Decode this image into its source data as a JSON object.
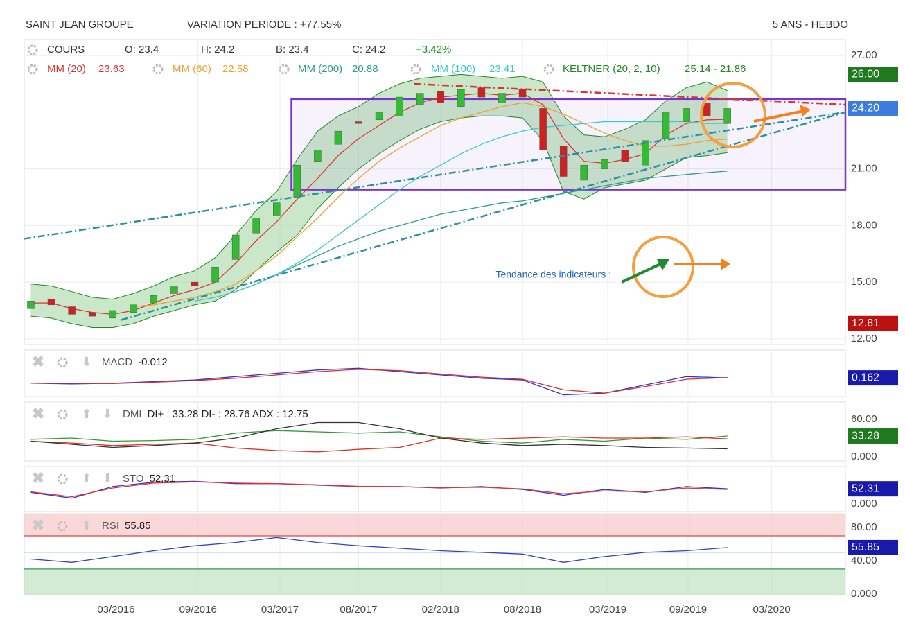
{
  "header": {
    "title": "SAINT JEAN GROUPE",
    "variation": "VARIATION PERIODE : +77.55%",
    "period": "5 ANS - HEBDO"
  },
  "annotation": "Tendance des indicateurs :",
  "chart_data": [
    {
      "type": "candlestick",
      "ohlc_header": [
        "COURS",
        "O: 23.4",
        "H: 24.2",
        "B: 23.4",
        "C: 24.2",
        "+3.42%"
      ],
      "xlim": [
        2015.61,
        2020.62
      ],
      "xticks": [
        {
          "value": 2016.17,
          "label": "03/2016"
        },
        {
          "value": 2016.67,
          "label": "09/2016"
        },
        {
          "value": 2017.17,
          "label": "03/2017"
        },
        {
          "value": 2017.65,
          "label": "08/2017"
        },
        {
          "value": 2018.15,
          "label": "02/2018"
        },
        {
          "value": 2018.65,
          "label": "08/2018"
        },
        {
          "value": 2019.17,
          "label": "03/2019"
        },
        {
          "value": 2019.66,
          "label": "09/2019"
        },
        {
          "value": 2020.17,
          "label": "03/2020"
        }
      ],
      "ylim": [
        11.7,
        27.85
      ],
      "yticks": [
        {
          "value": 12,
          "label": "12.00"
        },
        {
          "value": 15,
          "label": "15.00"
        },
        {
          "value": 18,
          "label": "18.00"
        },
        {
          "value": 21,
          "label": "21.00"
        },
        {
          "value": 27,
          "label": "27.00"
        }
      ],
      "grid": true,
      "x": [
        2015.65,
        2015.775,
        2015.9,
        2016.025,
        2016.15,
        2016.275,
        2016.4,
        2016.525,
        2016.65,
        2016.775,
        2016.9,
        2017.025,
        2017.15,
        2017.275,
        2017.4,
        2017.525,
        2017.65,
        2017.775,
        2017.9,
        2018.025,
        2018.15,
        2018.275,
        2018.4,
        2018.525,
        2018.65,
        2018.775,
        2018.9,
        2019.025,
        2019.15,
        2019.275,
        2019.4,
        2019.525,
        2019.65,
        2019.775,
        2019.9
      ],
      "open": [
        13.6,
        14.1,
        13.7,
        13.4,
        13.1,
        13.4,
        13.9,
        14.4,
        15.0,
        15.0,
        16.2,
        17.6,
        18.5,
        19.5,
        21.4,
        22.3,
        23.5,
        23.6,
        23.8,
        24.4,
        25.1,
        24.3,
        25.3,
        24.5,
        25.2,
        24.2,
        22.2,
        20.4,
        21.0,
        22.0,
        21.2,
        22.6,
        23.5,
        24.5,
        23.4
      ],
      "close": [
        14.0,
        13.8,
        13.3,
        13.2,
        13.5,
        13.8,
        14.3,
        14.8,
        14.8,
        15.8,
        17.5,
        18.4,
        19.2,
        21.2,
        22.0,
        23.0,
        23.4,
        24.0,
        24.8,
        25.0,
        24.5,
        25.2,
        24.8,
        25.0,
        24.8,
        22.0,
        20.6,
        21.2,
        21.5,
        21.4,
        22.5,
        24.0,
        24.2,
        23.8,
        24.2
      ],
      "up_color": "#33bb33",
      "down_color": "#cc2222",
      "series": [
        {
          "name": "MM (20)",
          "value_label": "23.63",
          "color": "#dd3333",
          "values": [
            13.9,
            13.9,
            13.6,
            13.4,
            13.3,
            13.5,
            13.9,
            14.3,
            14.6,
            15.0,
            16.0,
            17.2,
            18.2,
            19.4,
            20.5,
            21.7,
            22.6,
            23.3,
            24.0,
            24.5,
            24.8,
            24.9,
            25.0,
            24.9,
            25.0,
            24.4,
            22.6,
            21.4,
            21.3,
            21.5,
            21.8,
            22.8,
            23.4,
            23.6,
            23.63
          ]
        },
        {
          "name": "MM (60)",
          "value_label": "22.58",
          "color": "#f0a030",
          "values": [
            null,
            null,
            null,
            null,
            null,
            13.7,
            13.8,
            14.0,
            14.2,
            14.5,
            14.9,
            15.6,
            16.4,
            17.4,
            18.4,
            19.5,
            20.5,
            21.4,
            22.1,
            22.7,
            23.3,
            23.7,
            24.0,
            24.3,
            24.5,
            24.3,
            23.9,
            23.4,
            22.9,
            22.5,
            22.2,
            22.2,
            22.3,
            22.5,
            22.58
          ]
        },
        {
          "name": "MM (200)",
          "value_label": "20.88",
          "color": "#2a9d8f",
          "values": [
            null,
            null,
            null,
            null,
            null,
            null,
            null,
            null,
            null,
            null,
            14.5,
            14.9,
            15.4,
            15.9,
            16.4,
            16.9,
            17.3,
            17.7,
            18.0,
            18.3,
            18.6,
            18.8,
            19.0,
            19.2,
            19.3,
            19.5,
            19.7,
            19.9,
            20.1,
            20.3,
            20.5,
            20.6,
            20.7,
            20.8,
            20.88
          ]
        },
        {
          "name": "MM (100)",
          "value_label": "23.41",
          "color": "#33cccc",
          "values": [
            null,
            null,
            null,
            null,
            null,
            null,
            null,
            null,
            14.0,
            14.2,
            14.5,
            14.9,
            15.4,
            16.0,
            16.7,
            17.5,
            18.3,
            19.1,
            19.9,
            20.6,
            21.2,
            21.8,
            22.3,
            22.7,
            23.0,
            23.2,
            23.3,
            23.4,
            23.5,
            23.5,
            23.5,
            23.5,
            23.5,
            23.4,
            23.41
          ]
        }
      ],
      "keltner": {
        "name": "KELTNER (20, 2, 10)",
        "value_label": "25.14 - 21.86",
        "color": "#228822",
        "fill": "#9fd49f",
        "upper": [
          14.9,
          14.8,
          14.5,
          14.2,
          14.1,
          14.4,
          14.8,
          15.3,
          15.6,
          16.3,
          17.5,
          18.8,
          19.8,
          21.5,
          23.0,
          23.8,
          24.3,
          25.0,
          25.5,
          25.8,
          25.9,
          26.0,
          25.9,
          25.8,
          25.9,
          25.6,
          23.8,
          22.8,
          22.7,
          23.1,
          23.6,
          24.6,
          25.3,
          25.6,
          25.14
        ],
        "lower": [
          13.2,
          13.1,
          12.8,
          12.6,
          12.6,
          12.8,
          13.2,
          13.5,
          13.8,
          14.0,
          14.6,
          15.6,
          16.6,
          17.5,
          18.9,
          20.0,
          21.0,
          21.8,
          22.5,
          23.1,
          23.5,
          23.7,
          23.8,
          23.8,
          23.7,
          22.5,
          19.8,
          19.4,
          20.0,
          20.2,
          20.4,
          21.0,
          21.6,
          21.7,
          21.86
        ]
      },
      "trend_lines": [
        {
          "x": [
            2015.61,
            2020.62
          ],
          "y": [
            17.3,
            24.0
          ],
          "color": "#2a8fa0"
        },
        {
          "x": [
            2016.2,
            2020.62
          ],
          "y": [
            13.0,
            24.0
          ],
          "color": "#2a8fa0"
        },
        {
          "x": [
            2017.99,
            2020.62
          ],
          "y": [
            25.5,
            24.4
          ],
          "color": "#dd3333"
        }
      ],
      "box": {
        "x": [
          2017.24,
          2020.62
        ],
        "y": [
          19.9,
          24.7
        ],
        "color": "#7a33cc"
      },
      "badges": [
        {
          "value": 26.0,
          "label": "26.00",
          "color": "#1f7a1f"
        },
        {
          "value": 24.2,
          "label": "24.20",
          "color": "#3b7ddd"
        },
        {
          "value": 12.81,
          "label": "12.81",
          "color": "#bb1111"
        }
      ]
    },
    {
      "type": "line",
      "name": "MACD",
      "value_label": "-0.012",
      "xlim": [
        2015.61,
        2020.62
      ],
      "ylim": [
        -0.4,
        1.0
      ],
      "yticks": [],
      "x": [
        2015.65,
        2015.9,
        2016.15,
        2016.4,
        2016.65,
        2016.9,
        2017.15,
        2017.4,
        2017.65,
        2017.9,
        2018.15,
        2018.4,
        2018.65,
        2018.9,
        2019.15,
        2019.4,
        2019.65,
        2019.9
      ],
      "series": [
        {
          "color": "#3333cc",
          "values": [
            0.0,
            -0.02,
            0.0,
            0.05,
            0.1,
            0.2,
            0.3,
            0.4,
            0.45,
            0.35,
            0.25,
            0.15,
            0.1,
            -0.35,
            -0.3,
            -0.05,
            0.2,
            0.162
          ]
        },
        {
          "color": "#cc3333",
          "values": [
            0.0,
            0.0,
            -0.01,
            0.03,
            0.08,
            0.15,
            0.25,
            0.35,
            0.42,
            0.38,
            0.28,
            0.18,
            0.12,
            -0.2,
            -0.3,
            -0.1,
            0.12,
            0.17
          ]
        }
      ],
      "badges": [
        {
          "value": 0.162,
          "label": "0.162",
          "color": "#1a1aaa"
        }
      ]
    },
    {
      "type": "line",
      "name": "DMI",
      "value_label": "DI+ : 33.28 DI- : 28.76 ADX : 12.75",
      "xlim": [
        2015.61,
        2020.62
      ],
      "ylim": [
        -6.7,
        87.8
      ],
      "yticks": [
        {
          "value": 0,
          "label": "0.000"
        },
        {
          "value": 60,
          "label": "60.00"
        }
      ],
      "x": [
        2015.65,
        2015.9,
        2016.15,
        2016.4,
        2016.65,
        2016.9,
        2017.15,
        2017.4,
        2017.65,
        2017.9,
        2018.15,
        2018.4,
        2018.65,
        2018.9,
        2019.15,
        2019.4,
        2019.65,
        2019.9
      ],
      "series": [
        {
          "color": "#339933",
          "values": [
            28,
            30,
            25,
            26,
            28,
            38,
            42,
            40,
            38,
            40,
            32,
            25,
            22,
            28,
            25,
            30,
            28,
            33.28
          ]
        },
        {
          "color": "#dd3322",
          "values": [
            25,
            22,
            18,
            20,
            22,
            14,
            10,
            8,
            12,
            15,
            30,
            28,
            30,
            32,
            30,
            30,
            32,
            28.76
          ]
        },
        {
          "color": "#333333",
          "values": [
            25,
            20,
            15,
            18,
            22,
            30,
            45,
            55,
            55,
            45,
            30,
            22,
            18,
            20,
            18,
            15,
            14,
            12.75
          ]
        }
      ],
      "badges": [
        {
          "value": 33.28,
          "label": "33.28",
          "color": "#1f7a1f"
        }
      ]
    },
    {
      "type": "line",
      "name": "STO",
      "value_label": "52.31",
      "xlim": [
        2015.61,
        2020.62
      ],
      "ylim": [
        -26,
        129
      ],
      "yticks": [
        {
          "value": 0,
          "label": "0.000"
        }
      ],
      "x": [
        2015.65,
        2015.9,
        2016.15,
        2016.4,
        2016.65,
        2016.9,
        2017.15,
        2017.4,
        2017.65,
        2017.9,
        2018.15,
        2018.4,
        2018.65,
        2018.9,
        2019.15,
        2019.4,
        2019.65,
        2019.9
      ],
      "series": [
        {
          "color": "#3333cc",
          "values": [
            40,
            20,
            60,
            75,
            78,
            70,
            70,
            65,
            60,
            60,
            55,
            60,
            50,
            30,
            50,
            40,
            60,
            52.31
          ]
        },
        {
          "color": "#dd3333",
          "values": [
            42,
            25,
            55,
            72,
            76,
            72,
            70,
            66,
            61,
            60,
            56,
            58,
            52,
            35,
            45,
            42,
            55,
            50
          ]
        }
      ],
      "badges": [
        {
          "value": 52.31,
          "label": "52.31",
          "color": "#1a1aaa"
        }
      ]
    },
    {
      "type": "line",
      "name": "RSI",
      "value_label": "55.85",
      "xlim": [
        2015.61,
        2020.62
      ],
      "ylim": [
        -1,
        96.7
      ],
      "yticks": [
        {
          "value": 0,
          "label": "0.000"
        },
        {
          "value": 40,
          "label": "40.00"
        },
        {
          "value": 80,
          "label": "80.00"
        }
      ],
      "levels": [
        {
          "value": 70,
          "color": "#dd4444"
        },
        {
          "value": 50,
          "color": "#99ccee"
        },
        {
          "value": 30,
          "color": "#339955"
        }
      ],
      "x": [
        2015.65,
        2015.9,
        2016.15,
        2016.4,
        2016.65,
        2016.9,
        2017.15,
        2017.4,
        2017.65,
        2017.9,
        2018.15,
        2018.4,
        2018.65,
        2018.9,
        2019.15,
        2019.4,
        2019.65,
        2019.9
      ],
      "series": [
        {
          "color": "#3344bb",
          "values": [
            42,
            38,
            45,
            52,
            58,
            62,
            68,
            62,
            58,
            55,
            52,
            50,
            48,
            38,
            45,
            50,
            52,
            55.85
          ]
        }
      ],
      "badges": [
        {
          "value": 55.85,
          "label": "55.85",
          "color": "#1a1aaa"
        }
      ]
    }
  ]
}
